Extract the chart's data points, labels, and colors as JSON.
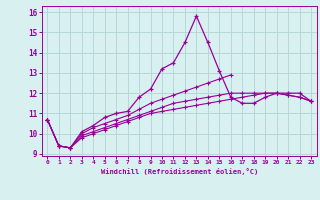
{
  "xlabel": "Windchill (Refroidissement éolien,°C)",
  "x": [
    0,
    1,
    2,
    3,
    4,
    5,
    6,
    7,
    8,
    9,
    10,
    11,
    12,
    13,
    14,
    15,
    16,
    17,
    18,
    19,
    20,
    21,
    22,
    23
  ],
  "line1": [
    10.7,
    9.4,
    9.3,
    10.1,
    10.4,
    10.8,
    11.0,
    11.1,
    11.8,
    12.2,
    13.2,
    13.5,
    14.5,
    15.8,
    14.5,
    13.1,
    11.8,
    11.5,
    11.5,
    11.8,
    12.0,
    12.0,
    12.0,
    11.6
  ],
  "line2": [
    10.7,
    9.4,
    9.3,
    10.0,
    10.3,
    10.5,
    10.7,
    10.9,
    11.2,
    11.5,
    11.7,
    11.9,
    12.1,
    12.3,
    12.5,
    12.7,
    12.9,
    null,
    null,
    null,
    null,
    null,
    null,
    null
  ],
  "line3": [
    10.7,
    9.4,
    9.3,
    9.9,
    10.1,
    10.3,
    10.5,
    10.7,
    10.9,
    11.1,
    11.3,
    11.5,
    11.6,
    11.7,
    11.8,
    11.9,
    12.0,
    12.0,
    12.0,
    12.0,
    12.0,
    11.9,
    11.8,
    11.6
  ],
  "line4": [
    10.7,
    9.4,
    9.3,
    9.8,
    10.0,
    10.2,
    10.4,
    10.6,
    10.8,
    11.0,
    11.1,
    11.2,
    11.3,
    11.4,
    11.5,
    11.6,
    11.7,
    11.8,
    11.9,
    12.0,
    12.0,
    11.9,
    11.8,
    11.6
  ],
  "line_color": "#990099",
  "bg_color": "#d8f0f0",
  "grid_color": "#b8d8d8",
  "yticks": [
    9,
    10,
    11,
    12,
    13,
    14,
    15,
    16
  ],
  "xticks": [
    0,
    1,
    2,
    3,
    4,
    5,
    6,
    7,
    8,
    9,
    10,
    11,
    12,
    13,
    14,
    15,
    16,
    17,
    18,
    19,
    20,
    21,
    22,
    23
  ]
}
